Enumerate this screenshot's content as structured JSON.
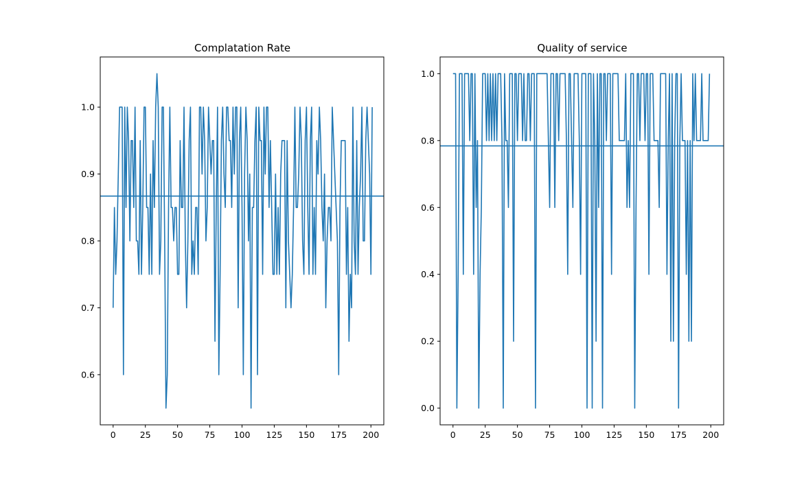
{
  "chart_data": [
    {
      "type": "line",
      "title": "Complatation Rate",
      "xlabel": "",
      "ylabel": "",
      "xlim": [
        -10,
        210
      ],
      "ylim": [
        0.525,
        1.075
      ],
      "xticks": [
        0,
        25,
        50,
        75,
        100,
        125,
        150,
        175,
        200
      ],
      "yticks": [
        0.6,
        0.7,
        0.8,
        0.9,
        1.0
      ],
      "xtick_labels": [
        "0",
        "25",
        "50",
        "75",
        "100",
        "125",
        "150",
        "175",
        "200"
      ],
      "ytick_labels": [
        "0.6",
        "0.7",
        "0.8",
        "0.9",
        "1.0"
      ],
      "grid": false,
      "color": "#1f77b4",
      "mean_line": 0.867,
      "values": [
        0.7,
        0.85,
        0.75,
        0.8,
        0.9,
        1.0,
        1.0,
        1.0,
        0.6,
        1.0,
        0.85,
        1.0,
        0.95,
        0.8,
        0.95,
        0.95,
        0.85,
        1.0,
        0.8,
        0.8,
        0.75,
        0.95,
        0.75,
        0.85,
        1.0,
        1.0,
        0.85,
        0.85,
        0.75,
        0.9,
        0.75,
        0.95,
        0.85,
        1.0,
        1.05,
        1.0,
        0.75,
        0.8,
        1.0,
        1.0,
        0.8,
        0.55,
        0.6,
        0.85,
        1.0,
        0.85,
        0.85,
        0.8,
        0.85,
        0.85,
        0.75,
        0.75,
        0.95,
        0.85,
        0.85,
        1.0,
        0.8,
        0.7,
        0.8,
        0.95,
        1.0,
        0.75,
        0.8,
        0.75,
        0.85,
        0.85,
        0.75,
        1.0,
        1.0,
        0.9,
        1.0,
        0.95,
        0.8,
        0.85,
        1.0,
        0.95,
        0.9,
        0.95,
        0.95,
        0.65,
        0.85,
        1.0,
        0.6,
        0.75,
        0.95,
        1.0,
        0.9,
        0.85,
        1.0,
        1.0,
        0.95,
        0.95,
        0.85,
        1.0,
        0.9,
        1.0,
        1.0,
        0.7,
        0.95,
        1.0,
        0.85,
        0.6,
        0.9,
        1.0,
        0.95,
        0.8,
        0.9,
        0.55,
        0.85,
        0.85,
        0.95,
        1.0,
        0.6,
        1.0,
        0.95,
        0.95,
        0.75,
        1.0,
        0.9,
        1.0,
        1.0,
        0.85,
        0.95,
        0.85,
        0.75,
        0.75,
        0.9,
        0.75,
        0.85,
        0.75,
        0.9,
        0.95,
        0.95,
        0.95,
        0.7,
        0.95,
        0.8,
        0.75,
        0.7,
        0.75,
        0.85,
        1.0,
        0.85,
        0.85,
        0.9,
        1.0,
        0.95,
        0.8,
        0.75,
        0.95,
        1.0,
        0.85,
        0.75,
        0.95,
        1.0,
        0.75,
        0.85,
        0.75,
        0.95,
        0.9,
        1.0,
        0.95,
        0.85,
        0.8,
        0.9,
        0.7,
        0.8,
        0.85,
        0.85,
        0.8,
        1.0,
        0.95,
        0.9,
        0.85,
        0.8,
        0.6,
        0.85,
        0.95,
        0.95,
        0.95,
        0.95,
        0.75,
        0.85,
        0.65,
        0.75,
        0.7,
        1.0,
        0.8,
        0.75,
        0.95,
        0.75,
        0.85,
        0.9,
        1.0,
        0.8,
        0.8,
        0.95,
        1.0,
        0.95,
        0.9,
        0.75,
        1.0
      ]
    },
    {
      "type": "line",
      "title": "Quality of service",
      "xlabel": "",
      "ylabel": "",
      "xlim": [
        -10,
        210
      ],
      "ylim": [
        -0.05,
        1.05
      ],
      "xticks": [
        0,
        25,
        50,
        75,
        100,
        125,
        150,
        175,
        200
      ],
      "yticks": [
        0.0,
        0.2,
        0.4,
        0.6,
        0.8,
        1.0
      ],
      "xtick_labels": [
        "0",
        "25",
        "50",
        "75",
        "100",
        "125",
        "150",
        "175",
        "200"
      ],
      "ytick_labels": [
        "0.0",
        "0.2",
        "0.4",
        "0.6",
        "0.8",
        "1.0"
      ],
      "grid": false,
      "color": "#1f77b4",
      "mean_line": 0.784,
      "values": [
        1.0,
        1.0,
        1.0,
        0.0,
        0.4,
        1.0,
        1.0,
        1.0,
        0.4,
        1.0,
        1.0,
        1.0,
        1.0,
        0.8,
        1.0,
        1.0,
        0.4,
        1.0,
        0.6,
        0.8,
        0.0,
        0.4,
        0.6,
        1.0,
        1.0,
        1.0,
        0.8,
        1.0,
        0.8,
        1.0,
        0.8,
        1.0,
        0.8,
        1.0,
        0.8,
        1.0,
        1.0,
        1.0,
        0.8,
        0.0,
        1.0,
        0.8,
        0.8,
        0.6,
        1.0,
        1.0,
        1.0,
        0.2,
        1.0,
        1.0,
        0.8,
        1.0,
        1.0,
        1.0,
        0.8,
        1.0,
        0.8,
        0.8,
        1.0,
        1.0,
        0.8,
        1.0,
        1.0,
        1.0,
        0.0,
        1.0,
        1.0,
        1.0,
        1.0,
        1.0,
        1.0,
        1.0,
        1.0,
        1.0,
        0.8,
        0.6,
        1.0,
        1.0,
        1.0,
        0.6,
        1.0,
        1.0,
        0.8,
        1.0,
        1.0,
        1.0,
        1.0,
        1.0,
        0.8,
        0.4,
        1.0,
        1.0,
        0.8,
        0.6,
        1.0,
        1.0,
        1.0,
        1.0,
        0.8,
        0.4,
        1.0,
        1.0,
        1.0,
        1.0,
        0.0,
        1.0,
        1.0,
        1.0,
        0.0,
        1.0,
        0.8,
        0.2,
        1.0,
        0.6,
        1.0,
        1.0,
        0.0,
        1.0,
        1.0,
        0.8,
        1.0,
        1.0,
        1.0,
        0.4,
        1.0,
        1.0,
        1.0,
        1.0,
        1.0,
        0.8,
        0.8,
        0.8,
        0.8,
        0.8,
        1.0,
        0.6,
        0.8,
        0.6,
        1.0,
        1.0,
        1.0,
        0.0,
        0.6,
        1.0,
        1.0,
        0.8,
        1.0,
        1.0,
        1.0,
        0.8,
        1.0,
        1.0,
        0.4,
        1.0,
        1.0,
        1.0,
        0.8,
        0.8,
        0.8,
        0.8,
        0.6,
        1.0,
        1.0,
        1.0,
        1.0,
        1.0,
        0.4,
        0.8,
        1.0,
        0.2,
        1.0,
        0.2,
        0.8,
        1.0,
        1.0,
        0.0,
        0.8,
        1.0,
        0.8,
        0.8,
        0.8,
        0.4,
        0.8,
        0.2,
        0.8,
        0.2,
        1.0,
        0.8,
        1.0,
        0.8,
        0.8,
        0.8,
        0.8,
        1.0,
        0.8,
        0.8,
        0.8,
        0.8,
        0.8,
        1.0
      ]
    }
  ]
}
